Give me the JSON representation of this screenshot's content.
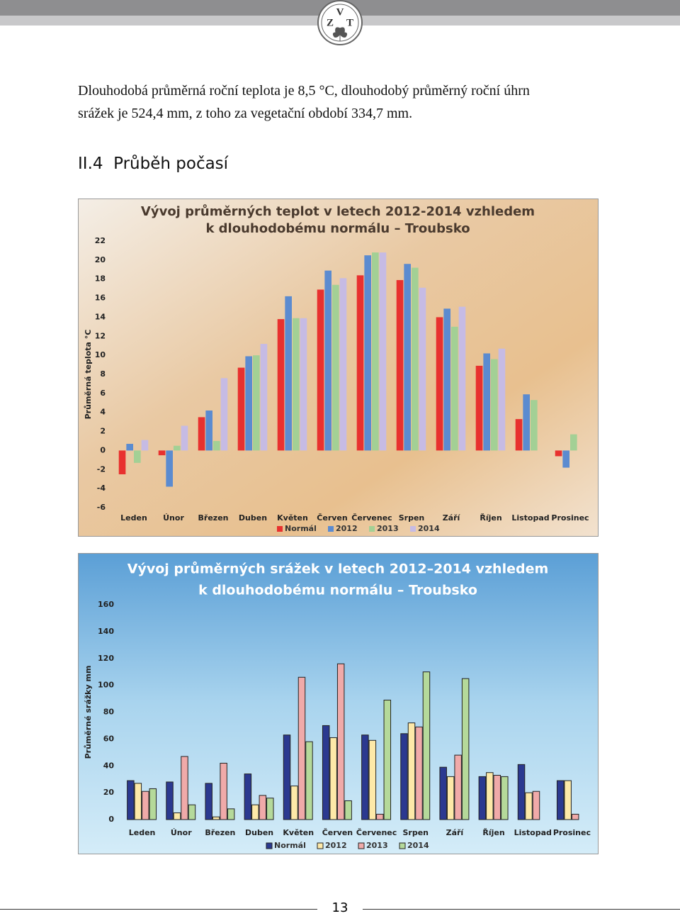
{
  "header": {
    "logo_letters": [
      "V",
      "Z",
      "T"
    ]
  },
  "intro": [
    "Dlouhodobá průměrná roční teplota je 8,5 °C, dlouhodobý průměrný roční úhrn",
    "srážek je 524,4 mm, z toho za vegetační období 334,7 mm."
  ],
  "heading": "II.4  Průběh počasí",
  "page_number": "13",
  "chart_data": [
    {
      "type": "bar",
      "title": [
        "Vývoj průměrných teplot v letech 2012-2014 vzhledem",
        "k dlouhodobému normálu – Troubsko"
      ],
      "y_label": "Průměrná teplota °C",
      "categories": [
        "Leden",
        "Únor",
        "Březen",
        "Duben",
        "Květen",
        "Červen",
        "Červenec",
        "Srpen",
        "Září",
        "Říjen",
        "Listopad",
        "Prosinec"
      ],
      "series": [
        {
          "name": "Normál",
          "color": "#e8312f",
          "values": [
            -2.5,
            -0.5,
            3.5,
            8.7,
            13.8,
            16.9,
            18.4,
            17.9,
            14.0,
            8.9,
            3.3,
            -0.6
          ]
        },
        {
          "name": "2012",
          "color": "#5b8bd0",
          "values": [
            0.7,
            -3.8,
            4.2,
            9.9,
            16.2,
            18.9,
            20.5,
            19.6,
            14.9,
            10.2,
            5.9,
            -1.8
          ]
        },
        {
          "name": "2013",
          "color": "#a3d095",
          "values": [
            -1.3,
            0.5,
            1.0,
            10.0,
            13.9,
            17.4,
            20.8,
            19.2,
            13.0,
            9.6,
            5.3,
            1.7
          ]
        },
        {
          "name": "2014",
          "color": "#c6bbe4",
          "values": [
            1.1,
            2.6,
            7.6,
            11.2,
            13.9,
            18.1,
            20.8,
            17.1,
            15.1,
            10.7,
            null,
            null
          ]
        }
      ],
      "ylim": [
        -6,
        22
      ],
      "yticks": [
        -6,
        -4,
        -2,
        0,
        2,
        4,
        6,
        8,
        10,
        12,
        14,
        16,
        18,
        20,
        22
      ]
    },
    {
      "type": "bar",
      "title": [
        "Vývoj průměrných srážek v letech 2012–2014 vzhledem",
        "k dlouhodobému normálu – Troubsko"
      ],
      "y_label": "Průměrné srážky mm",
      "categories": [
        "Leden",
        "Únor",
        "Březen",
        "Duben",
        "Květen",
        "Červen",
        "Červenec",
        "Srpen",
        "Září",
        "Říjen",
        "Listopad",
        "Prosinec"
      ],
      "series": [
        {
          "name": "Normál",
          "color": "#2b3990",
          "values": [
            29,
            28,
            27,
            34,
            63,
            70,
            63,
            64,
            39,
            32,
            41,
            29
          ]
        },
        {
          "name": "2012",
          "color": "#fde9a8",
          "values": [
            27,
            5,
            2,
            11,
            25,
            61,
            59,
            72,
            32,
            35,
            20,
            29
          ]
        },
        {
          "name": "2013",
          "color": "#f0aaa9",
          "values": [
            21,
            47,
            42,
            18,
            106,
            116,
            4,
            69,
            48,
            33,
            21,
            4
          ]
        },
        {
          "name": "2014",
          "color": "#b5d99a",
          "values": [
            23,
            11,
            8,
            16,
            58,
            14,
            89,
            110,
            105,
            32,
            null,
            null
          ]
        }
      ],
      "ylim": [
        0,
        160
      ],
      "yticks": [
        0,
        20,
        40,
        60,
        80,
        100,
        120,
        140,
        160
      ]
    }
  ]
}
